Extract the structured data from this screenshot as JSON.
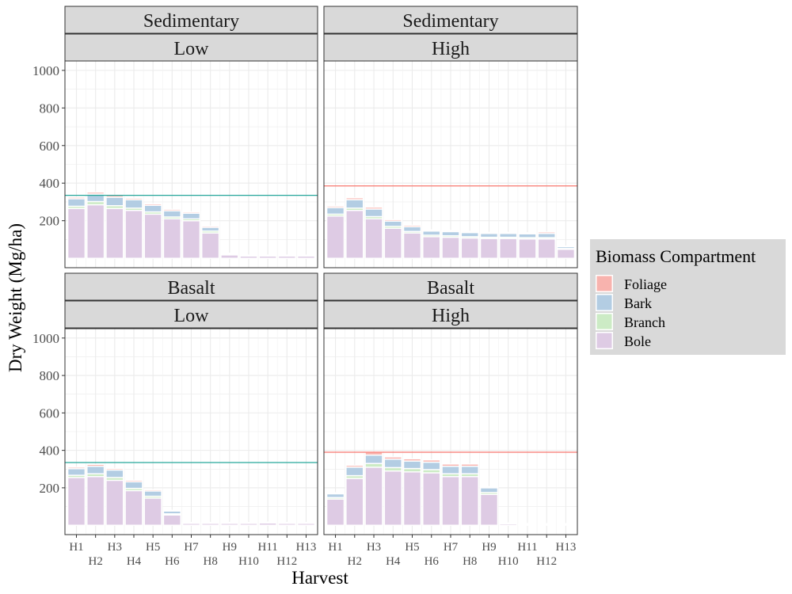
{
  "chart_data": {
    "type": "bar",
    "stacked": true,
    "xlabel": "Harvest",
    "ylabel": "Dry Weight (Mg/ha)",
    "yticks": [
      200,
      400,
      600,
      800,
      1000
    ],
    "ylim": [
      -50,
      1050
    ],
    "categories": [
      "H1",
      "H2",
      "H3",
      "H4",
      "H5",
      "H6",
      "H7",
      "H8",
      "H9",
      "H10",
      "H11",
      "H12",
      "H13"
    ],
    "legend": {
      "title": "Biomass Compartment",
      "position": "right",
      "entries": [
        "Foliage",
        "Bark",
        "Branch",
        "Bole"
      ]
    },
    "colors": {
      "Foliage": "#f8b3ae",
      "Bark": "#b3cde3",
      "Branch": "#ccebc5",
      "Bole": "#decbe4"
    },
    "panels": [
      {
        "geology": "Sedimentary",
        "intensity": "Low",
        "reference_line": {
          "value": 335,
          "color": "#26a69a"
        },
        "series": [
          {
            "name": "Bole",
            "values": [
              265,
              285,
              265,
              255,
              235,
              210,
              200,
              135,
              18,
              12,
              12,
              12,
              12
            ]
          },
          {
            "name": "Branch",
            "values": [
              12,
              17,
              15,
              12,
              12,
              10,
              10,
              10,
              2,
              1,
              1,
              1,
              1
            ]
          },
          {
            "name": "Bark",
            "values": [
              40,
              40,
              45,
              45,
              35,
              33,
              30,
              20,
              5,
              3,
              3,
              3,
              3
            ]
          },
          {
            "name": "Foliage",
            "values": [
              8,
              10,
              10,
              8,
              8,
              8,
              7,
              7,
              2,
              1,
              1,
              1,
              1
            ]
          }
        ]
      },
      {
        "geology": "Sedimentary",
        "intensity": "High",
        "reference_line": {
          "value": 385,
          "color": "#f8766d"
        },
        "series": [
          {
            "name": "Bole",
            "values": [
              225,
              255,
              210,
              160,
              135,
              115,
              112,
              108,
              105,
              105,
              103,
              103,
              48
            ]
          },
          {
            "name": "Branch",
            "values": [
              10,
              12,
              12,
              10,
              8,
              8,
              8,
              7,
              7,
              7,
              7,
              7,
              4
            ]
          },
          {
            "name": "Bark",
            "values": [
              35,
              45,
              40,
              28,
              25,
              22,
              22,
              22,
              20,
              20,
              20,
              22,
              10
            ]
          },
          {
            "name": "Foliage",
            "values": [
              8,
              10,
              10,
              8,
              8,
              6,
              6,
              6,
              6,
              6,
              6,
              8,
              3
            ]
          }
        ]
      },
      {
        "geology": "Basalt",
        "intensity": "Low",
        "reference_line": {
          "value": 335,
          "color": "#26a69a"
        },
        "series": [
          {
            "name": "Bole",
            "values": [
              255,
              260,
              240,
              185,
              145,
              55,
              10,
              10,
              10,
              10,
              12,
              10,
              10
            ]
          },
          {
            "name": "Branch",
            "values": [
              12,
              15,
              15,
              12,
              10,
              6,
              1,
              1,
              1,
              1,
              1,
              1,
              1
            ]
          },
          {
            "name": "Bark",
            "values": [
              35,
              40,
              40,
              35,
              28,
              15,
              3,
              3,
              3,
              3,
              3,
              3,
              3
            ]
          },
          {
            "name": "Foliage",
            "values": [
              8,
              10,
              8,
              8,
              7,
              4,
              1,
              1,
              1,
              1,
              1,
              1,
              1
            ]
          }
        ]
      },
      {
        "geology": "Basalt",
        "intensity": "High",
        "reference_line": {
          "value": 390,
          "color": "#f8766d"
        },
        "series": [
          {
            "name": "Bole",
            "values": [
              140,
              250,
              310,
              290,
              285,
              280,
              260,
              260,
              165,
              8,
              5,
              5,
              5
            ]
          },
          {
            "name": "Branch",
            "values": [
              8,
              15,
              20,
              18,
              18,
              17,
              15,
              15,
              10,
              1,
              1,
              1,
              1
            ]
          },
          {
            "name": "Bark",
            "values": [
              20,
              45,
              45,
              45,
              40,
              40,
              40,
              40,
              25,
              2,
              2,
              2,
              2
            ]
          },
          {
            "name": "Foliage",
            "values": [
              6,
              10,
              15,
              12,
              12,
              12,
              12,
              12,
              6,
              1,
              1,
              1,
              1
            ]
          }
        ]
      }
    ]
  }
}
